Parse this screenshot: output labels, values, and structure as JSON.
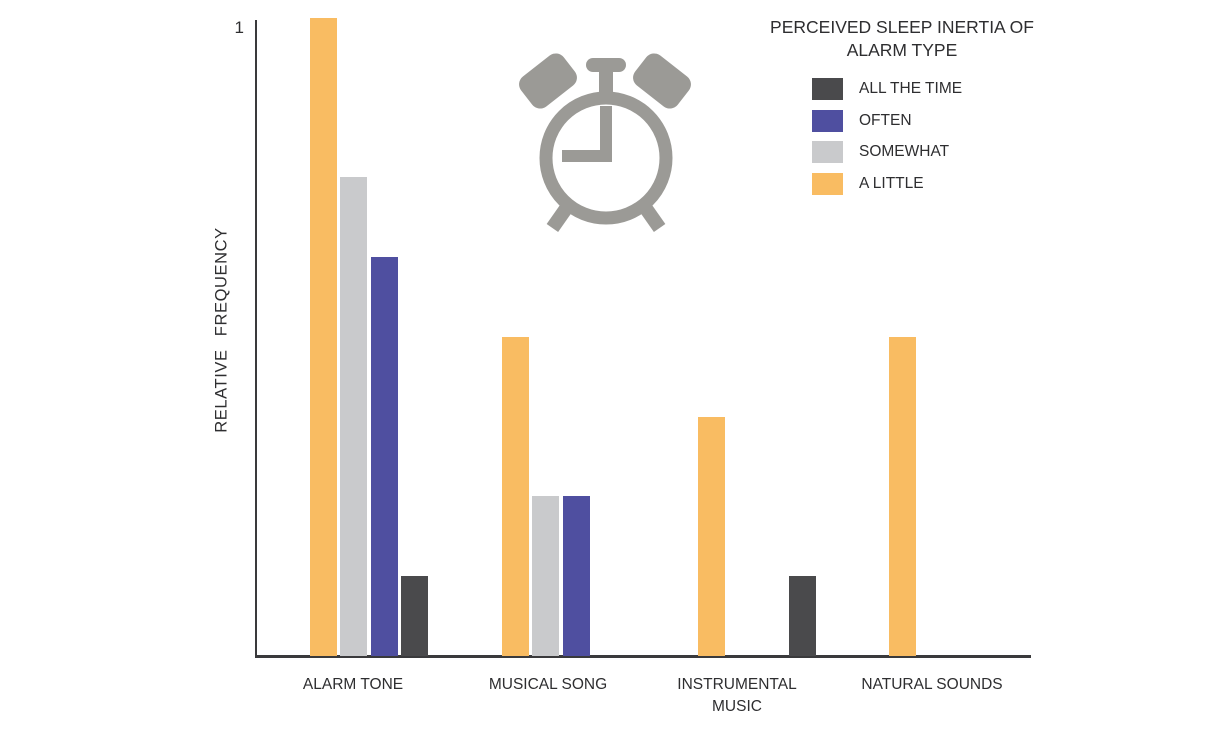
{
  "chart_data": {
    "type": "bar",
    "title": "PERCEIVED SLEEP INERTIA OF ALARM TYPE",
    "ylabel": "RELATIVE FREQUENCY",
    "xlabel": "",
    "ylim": [
      0,
      1
    ],
    "ytick_labels": [
      "1"
    ],
    "grid": false,
    "legend_position": "top-right",
    "categories": [
      "ALARM TONE",
      "MUSICAL SONG",
      "INSTRUMENTAL MUSIC",
      "NATURAL SOUNDS"
    ],
    "series": [
      {
        "name": "ALL THE TIME",
        "color": "#4A4A4C",
        "values": [
          0.125,
          0,
          0.125,
          0
        ]
      },
      {
        "name": "OFTEN",
        "color": "#4F4FA0",
        "values": [
          0.625,
          0.25,
          0,
          0
        ]
      },
      {
        "name": "SOMEWHAT",
        "color": "#C9CACC",
        "values": [
          0.75,
          0.25,
          0,
          0
        ]
      },
      {
        "name": "A LITTLE",
        "color": "#F9BC62",
        "values": [
          1,
          0.5,
          0.375,
          0.5
        ]
      }
    ],
    "bar_order_within_group": [
      "A LITTLE",
      "SOMEWHAT",
      "OFTEN",
      "ALL THE TIME"
    ],
    "icon": "alarm-clock-icon",
    "icon_color": "#9B9A96",
    "axis_color": "#3A3A3C",
    "text_color": "#2E2E30"
  }
}
